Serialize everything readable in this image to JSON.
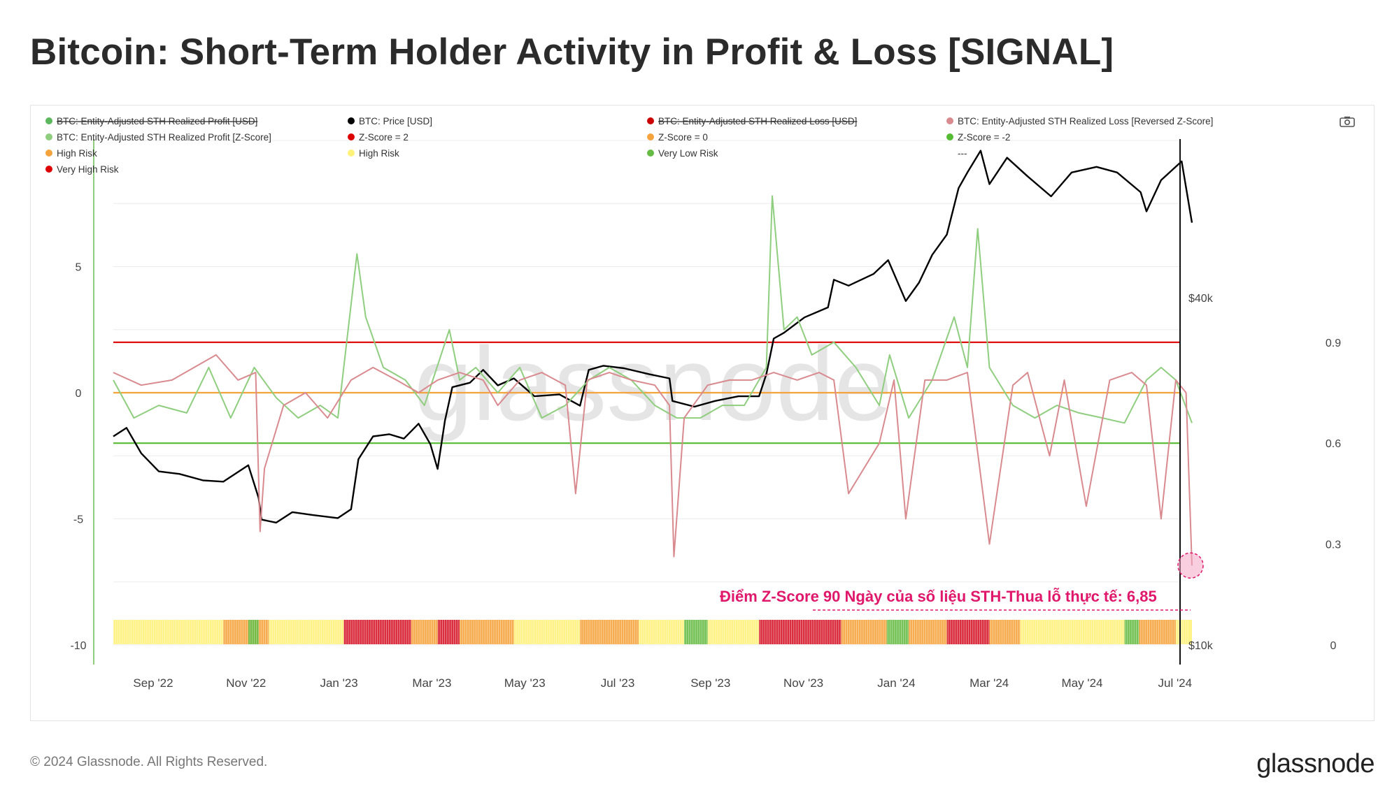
{
  "page": {
    "title": "Bitcoin: Short-Term Holder Activity in Profit & Loss [SIGNAL]",
    "copyright": "© 2024 Glassnode. All Rights Reserved.",
    "brand": "glassnode",
    "watermark": "glassnode",
    "camera_icon": "camera-icon"
  },
  "chart_data": {
    "type": "line",
    "legend": [
      {
        "label": "BTC: Entity-Adjusted STH Realized Profit [USD]",
        "color": "#5cb85c",
        "strike": true
      },
      {
        "label": "BTC: Price [USD]",
        "color": "#000000",
        "strike": false
      },
      {
        "label": "BTC: Entity-Adjusted STH Realized Loss [USD]",
        "color": "#cc0000",
        "strike": true
      },
      {
        "label": "BTC: Entity-Adjusted STH Realized Loss [Reversed Z-Score]",
        "color": "#d98a8f",
        "strike": false
      },
      {
        "label": "BTC: Entity-Adjusted STH Realized Profit [Z-Score]",
        "color": "#8fce7f",
        "strike": false
      },
      {
        "label": "Z-Score = 2",
        "color": "#dd0000",
        "strike": false
      },
      {
        "label": "Z-Score = 0",
        "color": "#f5a33c",
        "strike": false
      },
      {
        "label": "Z-Score = -2",
        "color": "#55bb33",
        "strike": false
      },
      {
        "label": "High Risk",
        "color": "#f5a33c",
        "strike": false
      },
      {
        "label": "High Risk",
        "color": "#fff27a",
        "strike": false
      },
      {
        "label": "Very Low Risk",
        "color": "#66bb44",
        "strike": false
      },
      {
        "label": "---",
        "color": "",
        "strike": false
      },
      {
        "label": "Very High Risk",
        "color": "#dd0000",
        "strike": false
      }
    ],
    "x_ticks": [
      "Sep '22",
      "Nov '22",
      "Jan '23",
      "Mar '23",
      "May '23",
      "Jul '23",
      "Sep '23",
      "Nov '23",
      "Jan '24",
      "Mar '24",
      "May '24",
      "Jul '24"
    ],
    "x_range": [
      "2022-08-01",
      "2024-08-05"
    ],
    "y_left": {
      "ticks": [
        "5",
        "0",
        "-5",
        "-10"
      ],
      "range": [
        -10,
        10
      ]
    },
    "y_price": {
      "ticks": [
        "$40k",
        "$10k"
      ],
      "scale": "log",
      "range": [
        10000,
        75000
      ]
    },
    "y_right": {
      "ticks": [
        "0.9",
        "0.6",
        "0.3",
        "0"
      ],
      "range": [
        0,
        1.5
      ]
    },
    "ref_lines": [
      {
        "label": "Z-Score = 2",
        "value": 2,
        "color": "#dd0000"
      },
      {
        "label": "Z-Score = 0",
        "value": 0,
        "color": "#f5a33c"
      },
      {
        "label": "Z-Score = -2",
        "value": -2,
        "color": "#55bb33"
      }
    ],
    "series": [
      {
        "name": "BTC: Price [USD]",
        "color": "#000000",
        "axis": "price",
        "x": [
          "2022-08-01",
          "2022-08-10",
          "2022-08-20",
          "2022-09-01",
          "2022-09-15",
          "2022-10-01",
          "2022-10-15",
          "2022-11-01",
          "2022-11-08",
          "2022-11-10",
          "2022-11-20",
          "2022-12-01",
          "2022-12-15",
          "2023-01-01",
          "2023-01-10",
          "2023-01-15",
          "2023-01-25",
          "2023-02-05",
          "2023-02-15",
          "2023-02-25",
          "2023-03-05",
          "2023-03-10",
          "2023-03-15",
          "2023-03-20",
          "2023-04-01",
          "2023-04-10",
          "2023-04-20",
          "2023-05-01",
          "2023-05-15",
          "2023-06-01",
          "2023-06-15",
          "2023-06-21",
          "2023-07-01",
          "2023-07-15",
          "2023-08-01",
          "2023-08-15",
          "2023-08-17",
          "2023-09-01",
          "2023-09-15",
          "2023-10-01",
          "2023-10-15",
          "2023-10-20",
          "2023-10-25",
          "2023-11-01",
          "2023-11-15",
          "2023-12-01",
          "2023-12-05",
          "2023-12-15",
          "2024-01-01",
          "2024-01-11",
          "2024-01-23",
          "2024-02-01",
          "2024-02-10",
          "2024-02-20",
          "2024-02-28",
          "2024-03-05",
          "2024-03-14",
          "2024-03-20",
          "2024-04-01",
          "2024-04-15",
          "2024-05-01",
          "2024-05-15",
          "2024-06-01",
          "2024-06-15",
          "2024-07-01",
          "2024-07-05",
          "2024-07-15",
          "2024-07-29",
          "2024-08-05"
        ],
        "y": [
          23000,
          23800,
          21500,
          20000,
          19800,
          19300,
          19200,
          20500,
          18000,
          16500,
          16300,
          17000,
          16800,
          16600,
          17200,
          21000,
          23000,
          23200,
          22800,
          24200,
          22300,
          20200,
          24500,
          28000,
          28500,
          30000,
          28200,
          29000,
          27000,
          27200,
          26000,
          30000,
          30500,
          30200,
          29500,
          29000,
          26500,
          25900,
          26500,
          27000,
          27000,
          29500,
          34000,
          34800,
          37000,
          38500,
          43000,
          42000,
          44000,
          46500,
          39500,
          42500,
          47500,
          51500,
          62000,
          66000,
          72000,
          63000,
          70000,
          65000,
          60000,
          66000,
          67500,
          66000,
          61000,
          56500,
          64000,
          69000,
          54000
        ]
      },
      {
        "name": "BTC: Entity-Adjusted STH Realized Profit [Z-Score]",
        "color": "#8fce7f",
        "axis": "left",
        "x": [
          "2022-08-01",
          "2022-08-15",
          "2022-09-01",
          "2022-09-20",
          "2022-10-05",
          "2022-10-20",
          "2022-11-05",
          "2022-11-20",
          "2022-12-05",
          "2022-12-20",
          "2023-01-01",
          "2023-01-14",
          "2023-01-20",
          "2023-02-01",
          "2023-02-16",
          "2023-03-01",
          "2023-03-18",
          "2023-03-25",
          "2023-04-05",
          "2023-04-20",
          "2023-05-05",
          "2023-05-20",
          "2023-06-05",
          "2023-06-21",
          "2023-07-05",
          "2023-07-20",
          "2023-08-05",
          "2023-08-20",
          "2023-09-05",
          "2023-09-20",
          "2023-10-05",
          "2023-10-20",
          "2023-10-24",
          "2023-11-01",
          "2023-11-10",
          "2023-11-20",
          "2023-12-05",
          "2023-12-20",
          "2024-01-05",
          "2024-01-12",
          "2024-01-25",
          "2024-02-10",
          "2024-02-25",
          "2024-03-05",
          "2024-03-12",
          "2024-03-20",
          "2024-04-05",
          "2024-04-20",
          "2024-05-05",
          "2024-05-20",
          "2024-06-05",
          "2024-06-20",
          "2024-07-05",
          "2024-07-15",
          "2024-07-25",
          "2024-08-05"
        ],
        "y": [
          0.5,
          -1.0,
          -0.5,
          -0.8,
          1.0,
          -1.0,
          1.0,
          -0.2,
          -1.0,
          -0.5,
          -1.0,
          5.5,
          3.0,
          1.0,
          0.5,
          -0.5,
          2.5,
          0.5,
          1.0,
          0.0,
          1.0,
          -1.0,
          -0.5,
          0.5,
          1.0,
          0.5,
          -0.5,
          -1.0,
          -1.0,
          -0.5,
          -0.5,
          1.0,
          7.8,
          2.5,
          3.0,
          1.5,
          2.0,
          1.0,
          -0.5,
          1.5,
          -1.0,
          0.5,
          3.0,
          1.0,
          6.5,
          1.0,
          -0.5,
          -1.0,
          -0.5,
          -0.8,
          -1.0,
          -1.2,
          0.5,
          1.0,
          0.5,
          -1.2
        ]
      },
      {
        "name": "BTC: Entity-Adjusted STH Realized Loss [Reversed Z-Score]",
        "color": "#d98a8f",
        "axis": "left",
        "x": [
          "2022-08-01",
          "2022-08-20",
          "2022-09-10",
          "2022-09-25",
          "2022-10-10",
          "2022-10-25",
          "2022-11-06",
          "2022-11-09",
          "2022-11-12",
          "2022-11-25",
          "2022-12-10",
          "2022-12-25",
          "2023-01-10",
          "2023-01-25",
          "2023-02-10",
          "2023-02-25",
          "2023-03-10",
          "2023-03-25",
          "2023-04-10",
          "2023-04-20",
          "2023-05-05",
          "2023-05-20",
          "2023-06-05",
          "2023-06-12",
          "2023-06-20",
          "2023-07-05",
          "2023-07-20",
          "2023-08-05",
          "2023-08-15",
          "2023-08-18",
          "2023-08-25",
          "2023-09-10",
          "2023-09-25",
          "2023-10-10",
          "2023-10-25",
          "2023-11-10",
          "2023-11-25",
          "2023-12-05",
          "2023-12-15",
          "2024-01-05",
          "2024-01-15",
          "2024-01-23",
          "2024-02-05",
          "2024-02-20",
          "2024-03-05",
          "2024-03-20",
          "2024-04-05",
          "2024-04-15",
          "2024-04-30",
          "2024-05-10",
          "2024-05-25",
          "2024-06-10",
          "2024-06-25",
          "2024-07-05",
          "2024-07-15",
          "2024-07-25",
          "2024-08-01",
          "2024-08-05"
        ],
        "y": [
          0.8,
          0.3,
          0.5,
          1.0,
          1.5,
          0.5,
          0.8,
          -5.5,
          -3.0,
          -0.5,
          0.0,
          -1.0,
          0.5,
          1.0,
          0.5,
          0.0,
          0.5,
          0.8,
          0.5,
          -0.5,
          0.5,
          0.8,
          0.3,
          -4.0,
          0.5,
          0.8,
          0.5,
          0.3,
          -0.5,
          -6.5,
          -1.0,
          0.3,
          0.5,
          0.5,
          0.8,
          0.5,
          0.8,
          0.5,
          -4.0,
          -2.0,
          0.5,
          -5.0,
          0.5,
          0.5,
          0.8,
          -6.0,
          0.3,
          0.8,
          -2.5,
          0.5,
          -4.5,
          0.5,
          0.8,
          0.3,
          -5.0,
          0.5,
          0.0,
          -6.85
        ]
      }
    ],
    "risk_band": {
      "description_categories": [
        "Very High Risk",
        "High Risk",
        "High Risk",
        "Very Low Risk"
      ],
      "segments": [
        {
          "from": "2022-08-01",
          "to": "2022-10-15",
          "risk": "high-yellow"
        },
        {
          "from": "2022-10-15",
          "to": "2022-11-15",
          "risk": "high-orange"
        },
        {
          "from": "2022-11-01",
          "to": "2022-11-08",
          "risk": "very-low"
        },
        {
          "from": "2022-11-15",
          "to": "2023-01-05",
          "risk": "high-yellow"
        },
        {
          "from": "2023-01-05",
          "to": "2023-02-20",
          "risk": "very-high"
        },
        {
          "from": "2023-02-20",
          "to": "2023-03-10",
          "risk": "high-orange"
        },
        {
          "from": "2023-03-10",
          "to": "2023-03-25",
          "risk": "very-high"
        },
        {
          "from": "2023-03-25",
          "to": "2023-05-01",
          "risk": "high-orange"
        },
        {
          "from": "2023-05-01",
          "to": "2023-06-15",
          "risk": "high-yellow"
        },
        {
          "from": "2023-06-15",
          "to": "2023-07-25",
          "risk": "high-orange"
        },
        {
          "from": "2023-07-25",
          "to": "2023-08-25",
          "risk": "high-yellow"
        },
        {
          "from": "2023-08-25",
          "to": "2023-09-10",
          "risk": "very-low"
        },
        {
          "from": "2023-09-10",
          "to": "2023-10-15",
          "risk": "high-yellow"
        },
        {
          "from": "2023-10-15",
          "to": "2023-12-10",
          "risk": "very-high"
        },
        {
          "from": "2023-12-10",
          "to": "2024-01-10",
          "risk": "high-orange"
        },
        {
          "from": "2024-01-10",
          "to": "2024-01-25",
          "risk": "very-low"
        },
        {
          "from": "2024-01-25",
          "to": "2024-02-20",
          "risk": "high-orange"
        },
        {
          "from": "2024-02-20",
          "to": "2024-03-20",
          "risk": "very-high"
        },
        {
          "from": "2024-03-20",
          "to": "2024-04-10",
          "risk": "high-orange"
        },
        {
          "from": "2024-04-10",
          "to": "2024-06-20",
          "risk": "high-yellow"
        },
        {
          "from": "2024-06-20",
          "to": "2024-06-30",
          "risk": "very-low"
        },
        {
          "from": "2024-06-30",
          "to": "2024-07-25",
          "risk": "high-orange"
        },
        {
          "from": "2024-07-25",
          "to": "2024-08-05",
          "risk": "high-yellow"
        }
      ]
    },
    "annotation": {
      "text": "Điểm Z-Score 90 Ngày của số liệu STH-Thua lỗ thực tế: 6,85",
      "x": "2024-08-05",
      "y": -6.85,
      "color": "#e0186c"
    },
    "grid": true
  }
}
